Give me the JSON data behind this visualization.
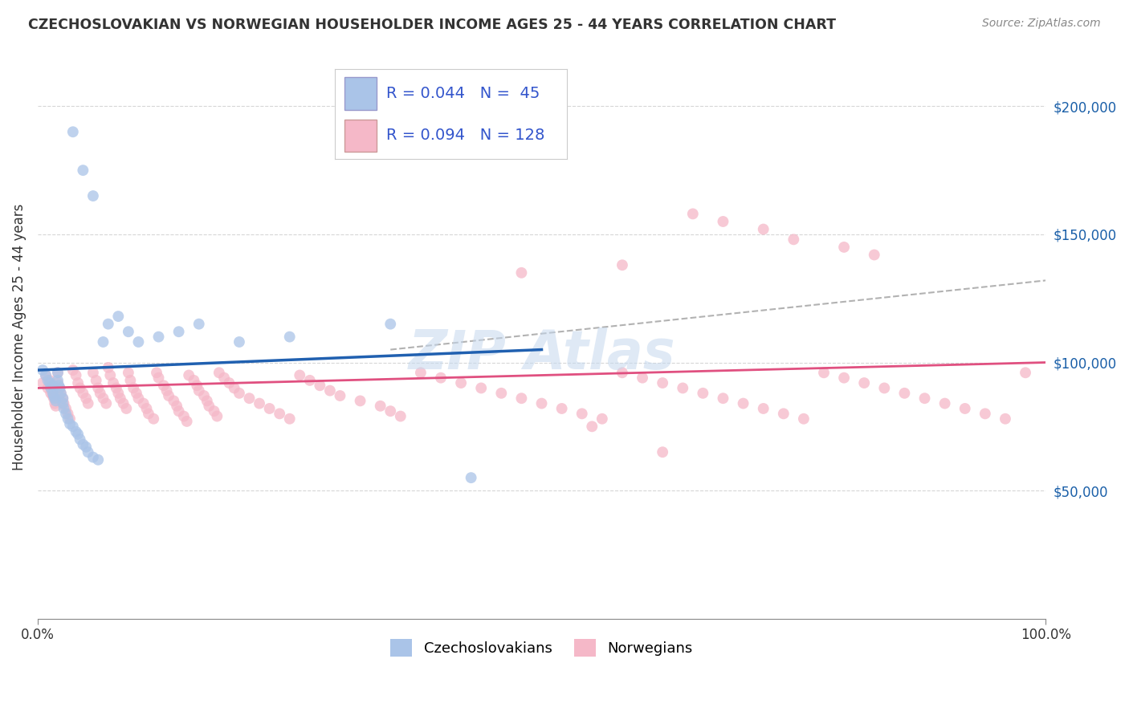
{
  "title": "CZECHOSLOVAKIAN VS NORWEGIAN HOUSEHOLDER INCOME AGES 25 - 44 YEARS CORRELATION CHART",
  "source": "Source: ZipAtlas.com",
  "ylabel": "Householder Income Ages 25 - 44 years",
  "xlim": [
    0,
    1
  ],
  "ylim": [
    0,
    220000
  ],
  "ytick_labels": [
    "",
    "$50,000",
    "$100,000",
    "$150,000",
    "$200,000"
  ],
  "xtick_labels": [
    "0.0%",
    "100.0%"
  ],
  "blue_R": 0.044,
  "blue_N": 45,
  "pink_R": 0.094,
  "pink_N": 128,
  "blue_color": "#aac4e8",
  "pink_color": "#f5b8c8",
  "blue_line_color": "#2060b0",
  "pink_line_color": "#e05080",
  "dashed_line_color": "#aaaaaa",
  "background_color": "#ffffff",
  "grid_color": "#cccccc",
  "title_color": "#333333",
  "source_color": "#888888",
  "legend_R_N_color": "#3355cc",
  "czech_x": [
    0.005,
    0.008,
    0.01,
    0.012,
    0.013,
    0.015,
    0.015,
    0.016,
    0.017,
    0.018,
    0.02,
    0.02,
    0.021,
    0.022,
    0.023,
    0.025,
    0.025,
    0.026,
    0.028,
    0.03,
    0.032,
    0.035,
    0.038,
    0.04,
    0.042,
    0.045,
    0.048,
    0.05,
    0.055,
    0.06,
    0.065,
    0.07,
    0.08,
    0.09,
    0.1,
    0.12,
    0.14,
    0.16,
    0.2,
    0.25,
    0.035,
    0.045,
    0.055,
    0.35,
    0.43
  ],
  "czech_y": [
    97000,
    95000,
    93000,
    92000,
    90000,
    91000,
    88000,
    87000,
    86000,
    85000,
    96000,
    93000,
    91000,
    90000,
    88000,
    86000,
    84000,
    82000,
    80000,
    78000,
    76000,
    75000,
    73000,
    72000,
    70000,
    68000,
    67000,
    65000,
    63000,
    62000,
    108000,
    115000,
    118000,
    112000,
    108000,
    110000,
    112000,
    115000,
    108000,
    110000,
    190000,
    175000,
    165000,
    115000,
    55000
  ],
  "norwegian_x": [
    0.005,
    0.008,
    0.01,
    0.012,
    0.013,
    0.015,
    0.015,
    0.016,
    0.017,
    0.018,
    0.02,
    0.02,
    0.022,
    0.023,
    0.025,
    0.026,
    0.028,
    0.03,
    0.032,
    0.035,
    0.038,
    0.04,
    0.042,
    0.045,
    0.048,
    0.05,
    0.055,
    0.058,
    0.06,
    0.062,
    0.065,
    0.068,
    0.07,
    0.072,
    0.075,
    0.078,
    0.08,
    0.082,
    0.085,
    0.088,
    0.09,
    0.092,
    0.095,
    0.098,
    0.1,
    0.105,
    0.108,
    0.11,
    0.115,
    0.118,
    0.12,
    0.125,
    0.128,
    0.13,
    0.135,
    0.138,
    0.14,
    0.145,
    0.148,
    0.15,
    0.155,
    0.158,
    0.16,
    0.165,
    0.168,
    0.17,
    0.175,
    0.178,
    0.18,
    0.185,
    0.19,
    0.195,
    0.2,
    0.21,
    0.22,
    0.23,
    0.24,
    0.25,
    0.26,
    0.27,
    0.28,
    0.29,
    0.3,
    0.32,
    0.34,
    0.35,
    0.36,
    0.38,
    0.4,
    0.42,
    0.44,
    0.46,
    0.48,
    0.5,
    0.52,
    0.54,
    0.56,
    0.58,
    0.6,
    0.62,
    0.64,
    0.66,
    0.68,
    0.7,
    0.72,
    0.74,
    0.76,
    0.78,
    0.8,
    0.82,
    0.84,
    0.86,
    0.88,
    0.9,
    0.92,
    0.94,
    0.96,
    0.98,
    0.65,
    0.68,
    0.72,
    0.75,
    0.8,
    0.83,
    0.58,
    0.48,
    0.62,
    0.55
  ],
  "norwegian_y": [
    92000,
    95000,
    90000,
    93000,
    88000,
    91000,
    87000,
    86000,
    84000,
    83000,
    96000,
    92000,
    90000,
    88000,
    86000,
    84000,
    82000,
    80000,
    78000,
    97000,
    95000,
    92000,
    90000,
    88000,
    86000,
    84000,
    96000,
    93000,
    90000,
    88000,
    86000,
    84000,
    98000,
    95000,
    92000,
    90000,
    88000,
    86000,
    84000,
    82000,
    96000,
    93000,
    90000,
    88000,
    86000,
    84000,
    82000,
    80000,
    78000,
    96000,
    94000,
    91000,
    89000,
    87000,
    85000,
    83000,
    81000,
    79000,
    77000,
    95000,
    93000,
    91000,
    89000,
    87000,
    85000,
    83000,
    81000,
    79000,
    96000,
    94000,
    92000,
    90000,
    88000,
    86000,
    84000,
    82000,
    80000,
    78000,
    95000,
    93000,
    91000,
    89000,
    87000,
    85000,
    83000,
    81000,
    79000,
    96000,
    94000,
    92000,
    90000,
    88000,
    86000,
    84000,
    82000,
    80000,
    78000,
    96000,
    94000,
    92000,
    90000,
    88000,
    86000,
    84000,
    82000,
    80000,
    78000,
    96000,
    94000,
    92000,
    90000,
    88000,
    86000,
    84000,
    82000,
    80000,
    78000,
    96000,
    158000,
    155000,
    152000,
    148000,
    145000,
    142000,
    138000,
    135000,
    65000,
    75000
  ]
}
